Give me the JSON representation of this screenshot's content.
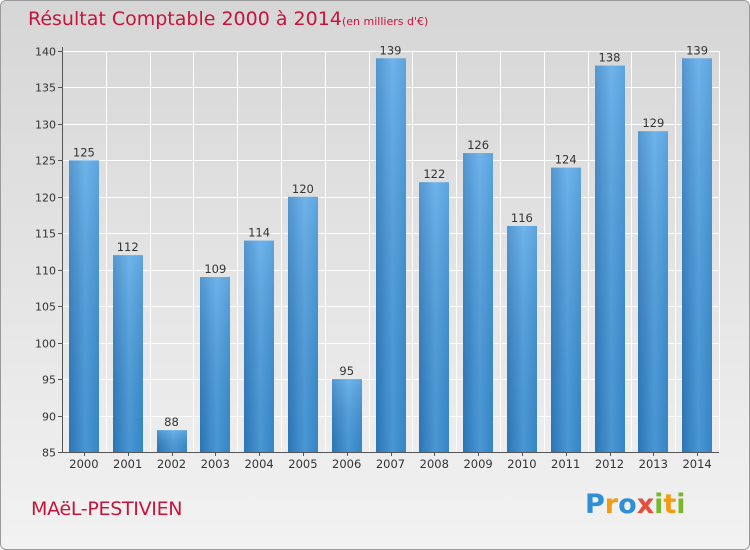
{
  "title": "Résultat Comptable 2000 à 2014",
  "subtitle": "(en milliers d'€)",
  "place": "MAëL-PESTIVIEN",
  "logo": {
    "letters": [
      "P",
      "r",
      "o",
      "x",
      "i",
      "t",
      "i"
    ],
    "colors": [
      "#2e8fd6",
      "#f39c12",
      "#2e8fd6",
      "#e84c3d",
      "#78b82a",
      "#f39c12",
      "#78b82a"
    ]
  },
  "colors": {
    "bar": "#3d8fd4",
    "bar_light": "#62b2ef",
    "text": "#c8143c",
    "grid": "#ffffff"
  },
  "chart_data": {
    "type": "bar",
    "categories": [
      "2000",
      "2001",
      "2002",
      "2003",
      "2004",
      "2005",
      "2006",
      "2007",
      "2008",
      "2009",
      "2010",
      "2011",
      "2012",
      "2013",
      "2014"
    ],
    "values": [
      125,
      112,
      88,
      109,
      114,
      120,
      95,
      139,
      122,
      126,
      116,
      124,
      138,
      129,
      139
    ],
    "ylim": [
      85,
      140
    ],
    "yticks": [
      85,
      90,
      95,
      100,
      105,
      110,
      115,
      120,
      125,
      130,
      135,
      140
    ],
    "grid": true,
    "data_labels": true
  }
}
